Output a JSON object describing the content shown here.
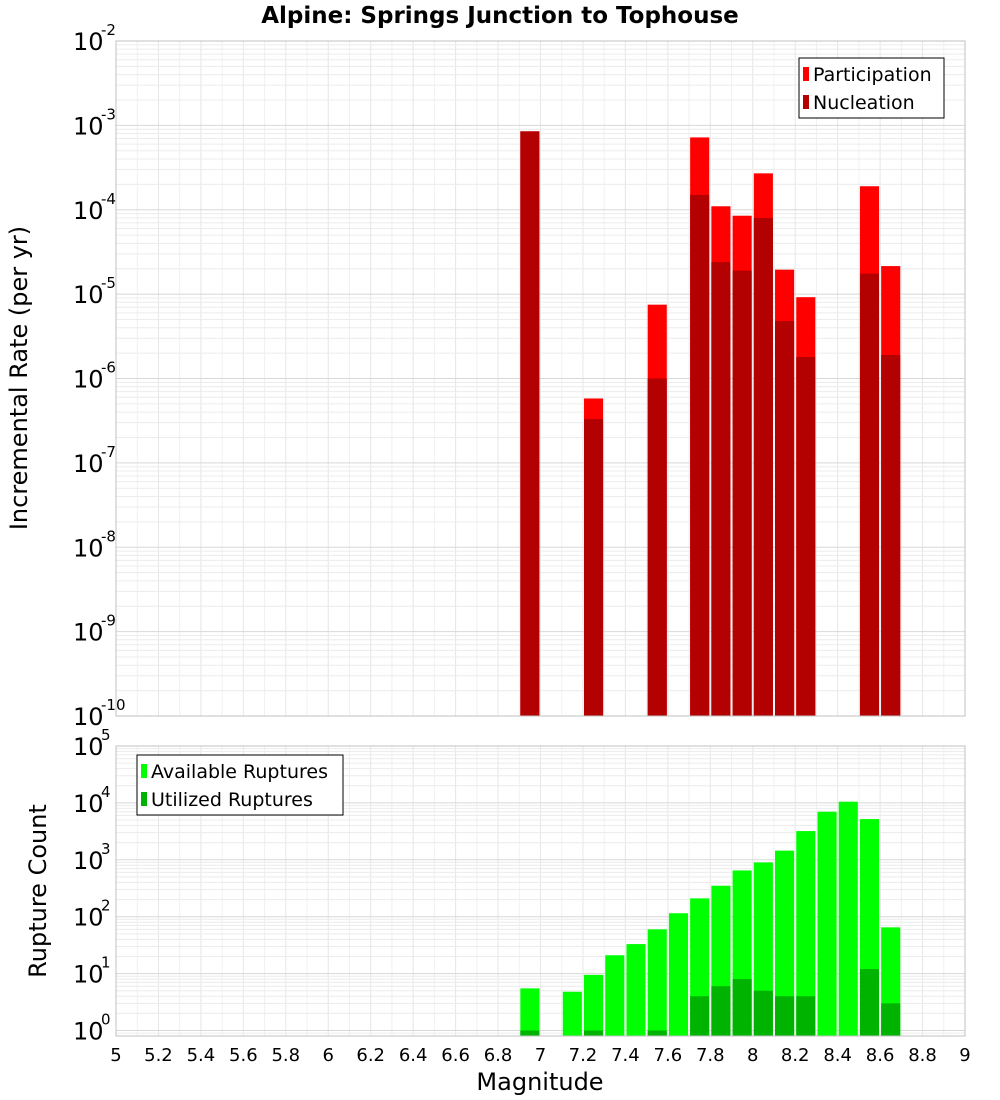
{
  "chart_data": [
    {
      "type": "bar",
      "title": "Alpine: Springs Junction to Tophouse",
      "ylabel": "Incremental Rate (per yr)",
      "xlabel": "",
      "yscale": "log",
      "ylim": [
        1e-10,
        0.01
      ],
      "xlim": [
        5,
        9
      ],
      "y_ticks": [
        {
          "base": "10",
          "exp": "-10"
        },
        {
          "base": "10",
          "exp": "-9"
        },
        {
          "base": "10",
          "exp": "-8"
        },
        {
          "base": "10",
          "exp": "-7"
        },
        {
          "base": "10",
          "exp": "-6"
        },
        {
          "base": "10",
          "exp": "-5"
        },
        {
          "base": "10",
          "exp": "-4"
        },
        {
          "base": "10",
          "exp": "-3"
        },
        {
          "base": "10",
          "exp": "-2"
        }
      ],
      "grid": true,
      "legend_position": "top-right",
      "bar_width": 0.09,
      "series": [
        {
          "name": "Participation",
          "color": "#ff0000",
          "points": [
            {
              "x": 6.95,
              "y": 0.00085
            },
            {
              "x": 7.25,
              "y": 5.8e-07
            },
            {
              "x": 7.55,
              "y": 7.5e-06
            },
            {
              "x": 7.75,
              "y": 0.00072
            },
            {
              "x": 7.85,
              "y": 0.00011
            },
            {
              "x": 7.95,
              "y": 8.5e-05
            },
            {
              "x": 8.05,
              "y": 0.00027
            },
            {
              "x": 8.15,
              "y": 1.95e-05
            },
            {
              "x": 8.25,
              "y": 9.2e-06
            },
            {
              "x": 8.55,
              "y": 0.00019
            },
            {
              "x": 8.65,
              "y": 2.15e-05
            }
          ]
        },
        {
          "name": "Nucleation",
          "color": "#b30000",
          "points": [
            {
              "x": 6.95,
              "y": 0.00085
            },
            {
              "x": 7.25,
              "y": 3.3e-07
            },
            {
              "x": 7.55,
              "y": 1e-06
            },
            {
              "x": 7.75,
              "y": 0.00015
            },
            {
              "x": 7.85,
              "y": 2.4e-05
            },
            {
              "x": 7.95,
              "y": 1.9e-05
            },
            {
              "x": 8.05,
              "y": 8e-05
            },
            {
              "x": 8.15,
              "y": 4.8e-06
            },
            {
              "x": 8.25,
              "y": 1.8e-06
            },
            {
              "x": 8.55,
              "y": 1.75e-05
            },
            {
              "x": 8.65,
              "y": 1.9e-06
            }
          ]
        }
      ]
    },
    {
      "type": "bar",
      "title": "",
      "ylabel": "Rupture Count",
      "xlabel": "Magnitude",
      "yscale": "log",
      "ylim": [
        0.8,
        100000
      ],
      "xlim": [
        5,
        9
      ],
      "x_ticks": [
        "5",
        "5.2",
        "5.4",
        "5.6",
        "5.8",
        "6",
        "6.2",
        "6.4",
        "6.6",
        "6.8",
        "7",
        "7.2",
        "7.4",
        "7.6",
        "7.8",
        "8",
        "8.2",
        "8.4",
        "8.6",
        "8.8",
        "9"
      ],
      "y_ticks": [
        {
          "base": "10",
          "exp": "0"
        },
        {
          "base": "10",
          "exp": "1"
        },
        {
          "base": "10",
          "exp": "2"
        },
        {
          "base": "10",
          "exp": "3"
        },
        {
          "base": "10",
          "exp": "4"
        },
        {
          "base": "10",
          "exp": "5"
        }
      ],
      "grid": true,
      "legend_position": "top-left",
      "bar_width": 0.09,
      "series": [
        {
          "name": "Available Ruptures",
          "color": "#00ff00",
          "points": [
            {
              "x": 6.95,
              "y": 5.5
            },
            {
              "x": 7.15,
              "y": 4.8
            },
            {
              "x": 7.25,
              "y": 9.5
            },
            {
              "x": 7.35,
              "y": 21
            },
            {
              "x": 7.45,
              "y": 33
            },
            {
              "x": 7.55,
              "y": 60
            },
            {
              "x": 7.65,
              "y": 115
            },
            {
              "x": 7.75,
              "y": 210
            },
            {
              "x": 7.85,
              "y": 350
            },
            {
              "x": 7.95,
              "y": 650
            },
            {
              "x": 8.05,
              "y": 900
            },
            {
              "x": 8.15,
              "y": 1450
            },
            {
              "x": 8.25,
              "y": 3200
            },
            {
              "x": 8.35,
              "y": 7000
            },
            {
              "x": 8.45,
              "y": 10500
            },
            {
              "x": 8.55,
              "y": 5200
            },
            {
              "x": 8.65,
              "y": 65
            }
          ]
        },
        {
          "name": "Utilized Ruptures",
          "color": "#00b300",
          "points": [
            {
              "x": 6.95,
              "y": 1
            },
            {
              "x": 7.25,
              "y": 1
            },
            {
              "x": 7.55,
              "y": 1
            },
            {
              "x": 7.75,
              "y": 4
            },
            {
              "x": 7.85,
              "y": 6
            },
            {
              "x": 7.95,
              "y": 8
            },
            {
              "x": 8.05,
              "y": 5
            },
            {
              "x": 8.15,
              "y": 4
            },
            {
              "x": 8.25,
              "y": 4
            },
            {
              "x": 8.55,
              "y": 12
            },
            {
              "x": 8.65,
              "y": 3
            }
          ]
        }
      ]
    }
  ]
}
